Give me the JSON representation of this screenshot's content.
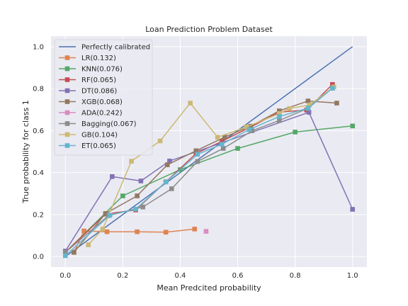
{
  "chart_data": {
    "type": "line",
    "title": "Loan Prediction Problem Dataset",
    "xlabel": "Mean Predcited probability",
    "ylabel": "True probability for class 1",
    "xlim": [
      -0.05,
      1.05
    ],
    "ylim": [
      -0.05,
      1.05
    ],
    "xticks": [
      "0.0",
      "0.2",
      "0.4",
      "0.6",
      "0.8",
      "1.0"
    ],
    "yticks": [
      "0.0",
      "0.2",
      "0.4",
      "0.6",
      "0.8",
      "1.0"
    ],
    "grid": true,
    "legend_position": "upper-left",
    "background": "#eaeaf2",
    "series": [
      {
        "name": "Perfectly calibrated",
        "color": "#4c72b0",
        "marker": "none",
        "x": [
          0,
          1
        ],
        "y": [
          0,
          1
        ]
      },
      {
        "name": "LR(0.132)",
        "color": "#dd8452",
        "marker": "square",
        "x": [
          0.03,
          0.065,
          0.145,
          0.25,
          0.35,
          0.45
        ],
        "y": [
          0.02,
          0.122,
          0.118,
          0.118,
          0.116,
          0.131
        ]
      },
      {
        "name": "KNN(0.076)",
        "color": "#55a868",
        "marker": "square",
        "x": [
          0.0,
          0.2,
          0.4,
          0.6,
          0.8,
          1.0
        ],
        "y": [
          0.02,
          0.289,
          0.414,
          0.515,
          0.593,
          0.622
        ]
      },
      {
        "name": "RF(0.065)",
        "color": "#c44e52",
        "marker": "square",
        "x": [
          0.0,
          0.14,
          0.245,
          0.35,
          0.455,
          0.545,
          0.645,
          0.745,
          0.84,
          0.93
        ],
        "y": [
          0.02,
          0.202,
          0.222,
          0.356,
          0.491,
          0.549,
          0.617,
          0.688,
          0.698,
          0.82
        ]
      },
      {
        "name": "DT(0.086)",
        "color": "#8172b3",
        "marker": "square",
        "x": [
          0.0,
          0.163,
          0.263,
          0.363,
          0.848,
          1.0
        ],
        "y": [
          0.026,
          0.381,
          0.36,
          0.455,
          0.687,
          0.225
        ]
      },
      {
        "name": "XGB(0.068)",
        "color": "#937860",
        "marker": "square",
        "x": [
          0.03,
          0.14,
          0.25,
          0.355,
          0.455,
          0.555,
          0.645,
          0.745,
          0.845,
          0.945
        ],
        "y": [
          0.02,
          0.205,
          0.289,
          0.437,
          0.504,
          0.569,
          0.621,
          0.694,
          0.741,
          0.731
        ]
      },
      {
        "name": "ADA(0.242)",
        "color": "#da8bc3",
        "marker": "square",
        "x": [
          0.49
        ],
        "y": [
          0.12
        ]
      },
      {
        "name": "Bagging(0.067)",
        "color": "#8c8c8c",
        "marker": "square",
        "x": [
          0.0,
          0.15,
          0.27,
          0.37,
          0.46,
          0.55,
          0.65,
          0.745,
          0.845,
          0.93
        ],
        "y": [
          0.02,
          0.195,
          0.236,
          0.323,
          0.453,
          0.515,
          0.599,
          0.648,
          0.706,
          0.802
        ]
      },
      {
        "name": "GB(0.104)",
        "color": "#ccb974",
        "marker": "square",
        "x": [
          0.08,
          0.13,
          0.23,
          0.33,
          0.435,
          0.53,
          0.63,
          0.745,
          0.78,
          0.85,
          0.935
        ],
        "y": [
          0.056,
          0.131,
          0.454,
          0.551,
          0.731,
          0.568,
          0.617,
          0.681,
          0.705,
          0.722,
          0.808
        ]
      },
      {
        "name": "ET(0.065)",
        "color": "#64b5cd",
        "marker": "square",
        "x": [
          0.0,
          0.155,
          0.245,
          0.35,
          0.46,
          0.545,
          0.64,
          0.745,
          0.845,
          0.93
        ],
        "y": [
          0.004,
          0.197,
          0.226,
          0.355,
          0.487,
          0.535,
          0.605,
          0.667,
          0.707,
          0.802
        ]
      }
    ]
  }
}
